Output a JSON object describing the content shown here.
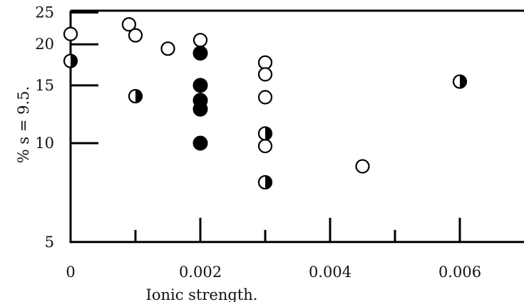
{
  "chart_data": {
    "type": "scatter",
    "title": "",
    "xlabel": "Ionic strength.",
    "ylabel": "% s = 9.5.",
    "x_scale": "linear",
    "y_scale": "log",
    "xlim": [
      0,
      0.007
    ],
    "ylim": [
      5,
      27
    ],
    "grid": false,
    "x_tick_labels": [
      {
        "value": 0,
        "label": "0"
      },
      {
        "value": 0.002,
        "label": "0.002"
      },
      {
        "value": 0.004,
        "label": "0.004"
      },
      {
        "value": 0.006,
        "label": "0.006"
      }
    ],
    "x_minor_ticks": [
      0.001,
      0.003,
      0.005
    ],
    "y_tick_labels": [
      {
        "value": 5,
        "label": "5"
      },
      {
        "value": 10,
        "label": "10"
      },
      {
        "value": 15,
        "label": "15"
      },
      {
        "value": 20,
        "label": "20"
      },
      {
        "value": 25,
        "label": "25"
      }
    ],
    "series": [
      {
        "marker": "open-circle",
        "points": [
          {
            "x": 0,
            "y": 21.5
          },
          {
            "x": 0.0009,
            "y": 23.0
          },
          {
            "x": 0.001,
            "y": 21.3
          },
          {
            "x": 0.0015,
            "y": 19.4
          },
          {
            "x": 0.002,
            "y": 20.6
          },
          {
            "x": 0.003,
            "y": 17.6
          },
          {
            "x": 0.003,
            "y": 16.2
          },
          {
            "x": 0.003,
            "y": 13.8
          },
          {
            "x": 0.003,
            "y": 9.8
          },
          {
            "x": 0.0045,
            "y": 8.5
          }
        ]
      },
      {
        "marker": "filled-circle",
        "points": [
          {
            "x": 0.002,
            "y": 18.8
          },
          {
            "x": 0.002,
            "y": 15.0
          },
          {
            "x": 0.002,
            "y": 13.5
          },
          {
            "x": 0.002,
            "y": 12.7
          },
          {
            "x": 0.002,
            "y": 10.0
          }
        ]
      },
      {
        "marker": "half-filled-circle",
        "points": [
          {
            "x": 0,
            "y": 17.8
          },
          {
            "x": 0.001,
            "y": 13.9
          },
          {
            "x": 0.003,
            "y": 10.7
          },
          {
            "x": 0.003,
            "y": 7.6
          },
          {
            "x": 0.006,
            "y": 15.4
          }
        ]
      }
    ]
  }
}
